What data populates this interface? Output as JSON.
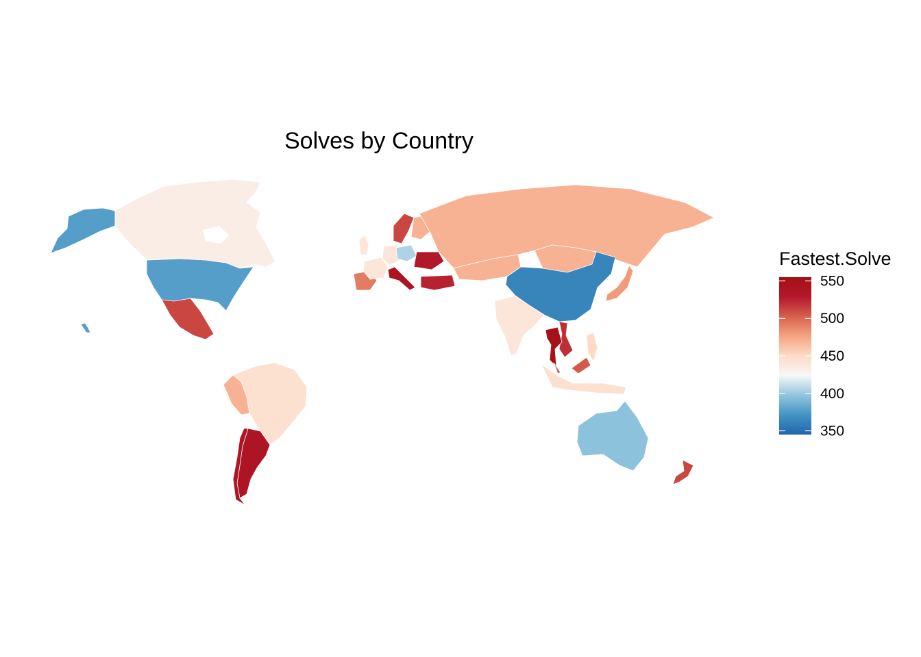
{
  "chart": {
    "title": "Solves by Country",
    "legend_title": "Fastest.Solve"
  },
  "chart_data": {
    "type": "choropleth",
    "title": "Solves by Country",
    "fill_variable": "Fastest.Solve",
    "legend": {
      "placement": "right",
      "ticks": [
        350,
        400,
        450,
        500,
        550
      ],
      "range": [
        345,
        555
      ],
      "palette": "RdBu (diverging, reversed): blue = low, red = high",
      "colors": [
        "#2166ac",
        "#4393c3",
        "#92c5de",
        "#f7f7f7",
        "#fddbc7",
        "#f4a582",
        "#d6604d",
        "#b2182b",
        "#a50f15"
      ]
    },
    "regions": [
      {
        "name": "United States",
        "value": 377
      },
      {
        "name": "Alaska (United States)",
        "value": 377
      },
      {
        "name": "Canada",
        "value": 433
      },
      {
        "name": "Mexico",
        "value": 512
      },
      {
        "name": "Brazil",
        "value": 445
      },
      {
        "name": "Peru",
        "value": 470
      },
      {
        "name": "Argentina",
        "value": 537
      },
      {
        "name": "Chile",
        "value": 537
      },
      {
        "name": "Sweden",
        "value": 512
      },
      {
        "name": "Finland",
        "value": 470
      },
      {
        "name": "Spain",
        "value": 492
      },
      {
        "name": "France",
        "value": 440
      },
      {
        "name": "United Kingdom",
        "value": 440
      },
      {
        "name": "Germany",
        "value": 440
      },
      {
        "name": "Poland",
        "value": 405
      },
      {
        "name": "Ukraine",
        "value": 530
      },
      {
        "name": "Italy",
        "value": 540
      },
      {
        "name": "Turkey",
        "value": 525
      },
      {
        "name": "Russia",
        "value": 470
      },
      {
        "name": "Kazakhstan",
        "value": 470
      },
      {
        "name": "Mongolia",
        "value": 470
      },
      {
        "name": "China",
        "value": 363
      },
      {
        "name": "Japan",
        "value": 480
      },
      {
        "name": "India",
        "value": 440
      },
      {
        "name": "Vietnam",
        "value": 520
      },
      {
        "name": "Thailand",
        "value": 550
      },
      {
        "name": "Malaysia",
        "value": 505
      },
      {
        "name": "Philippines",
        "value": 450
      },
      {
        "name": "Indonesia",
        "value": 445
      },
      {
        "name": "Australia",
        "value": 396
      },
      {
        "name": "New Zealand",
        "value": 512
      },
      {
        "name": "Hawaii (United States)",
        "value": 377
      }
    ]
  }
}
